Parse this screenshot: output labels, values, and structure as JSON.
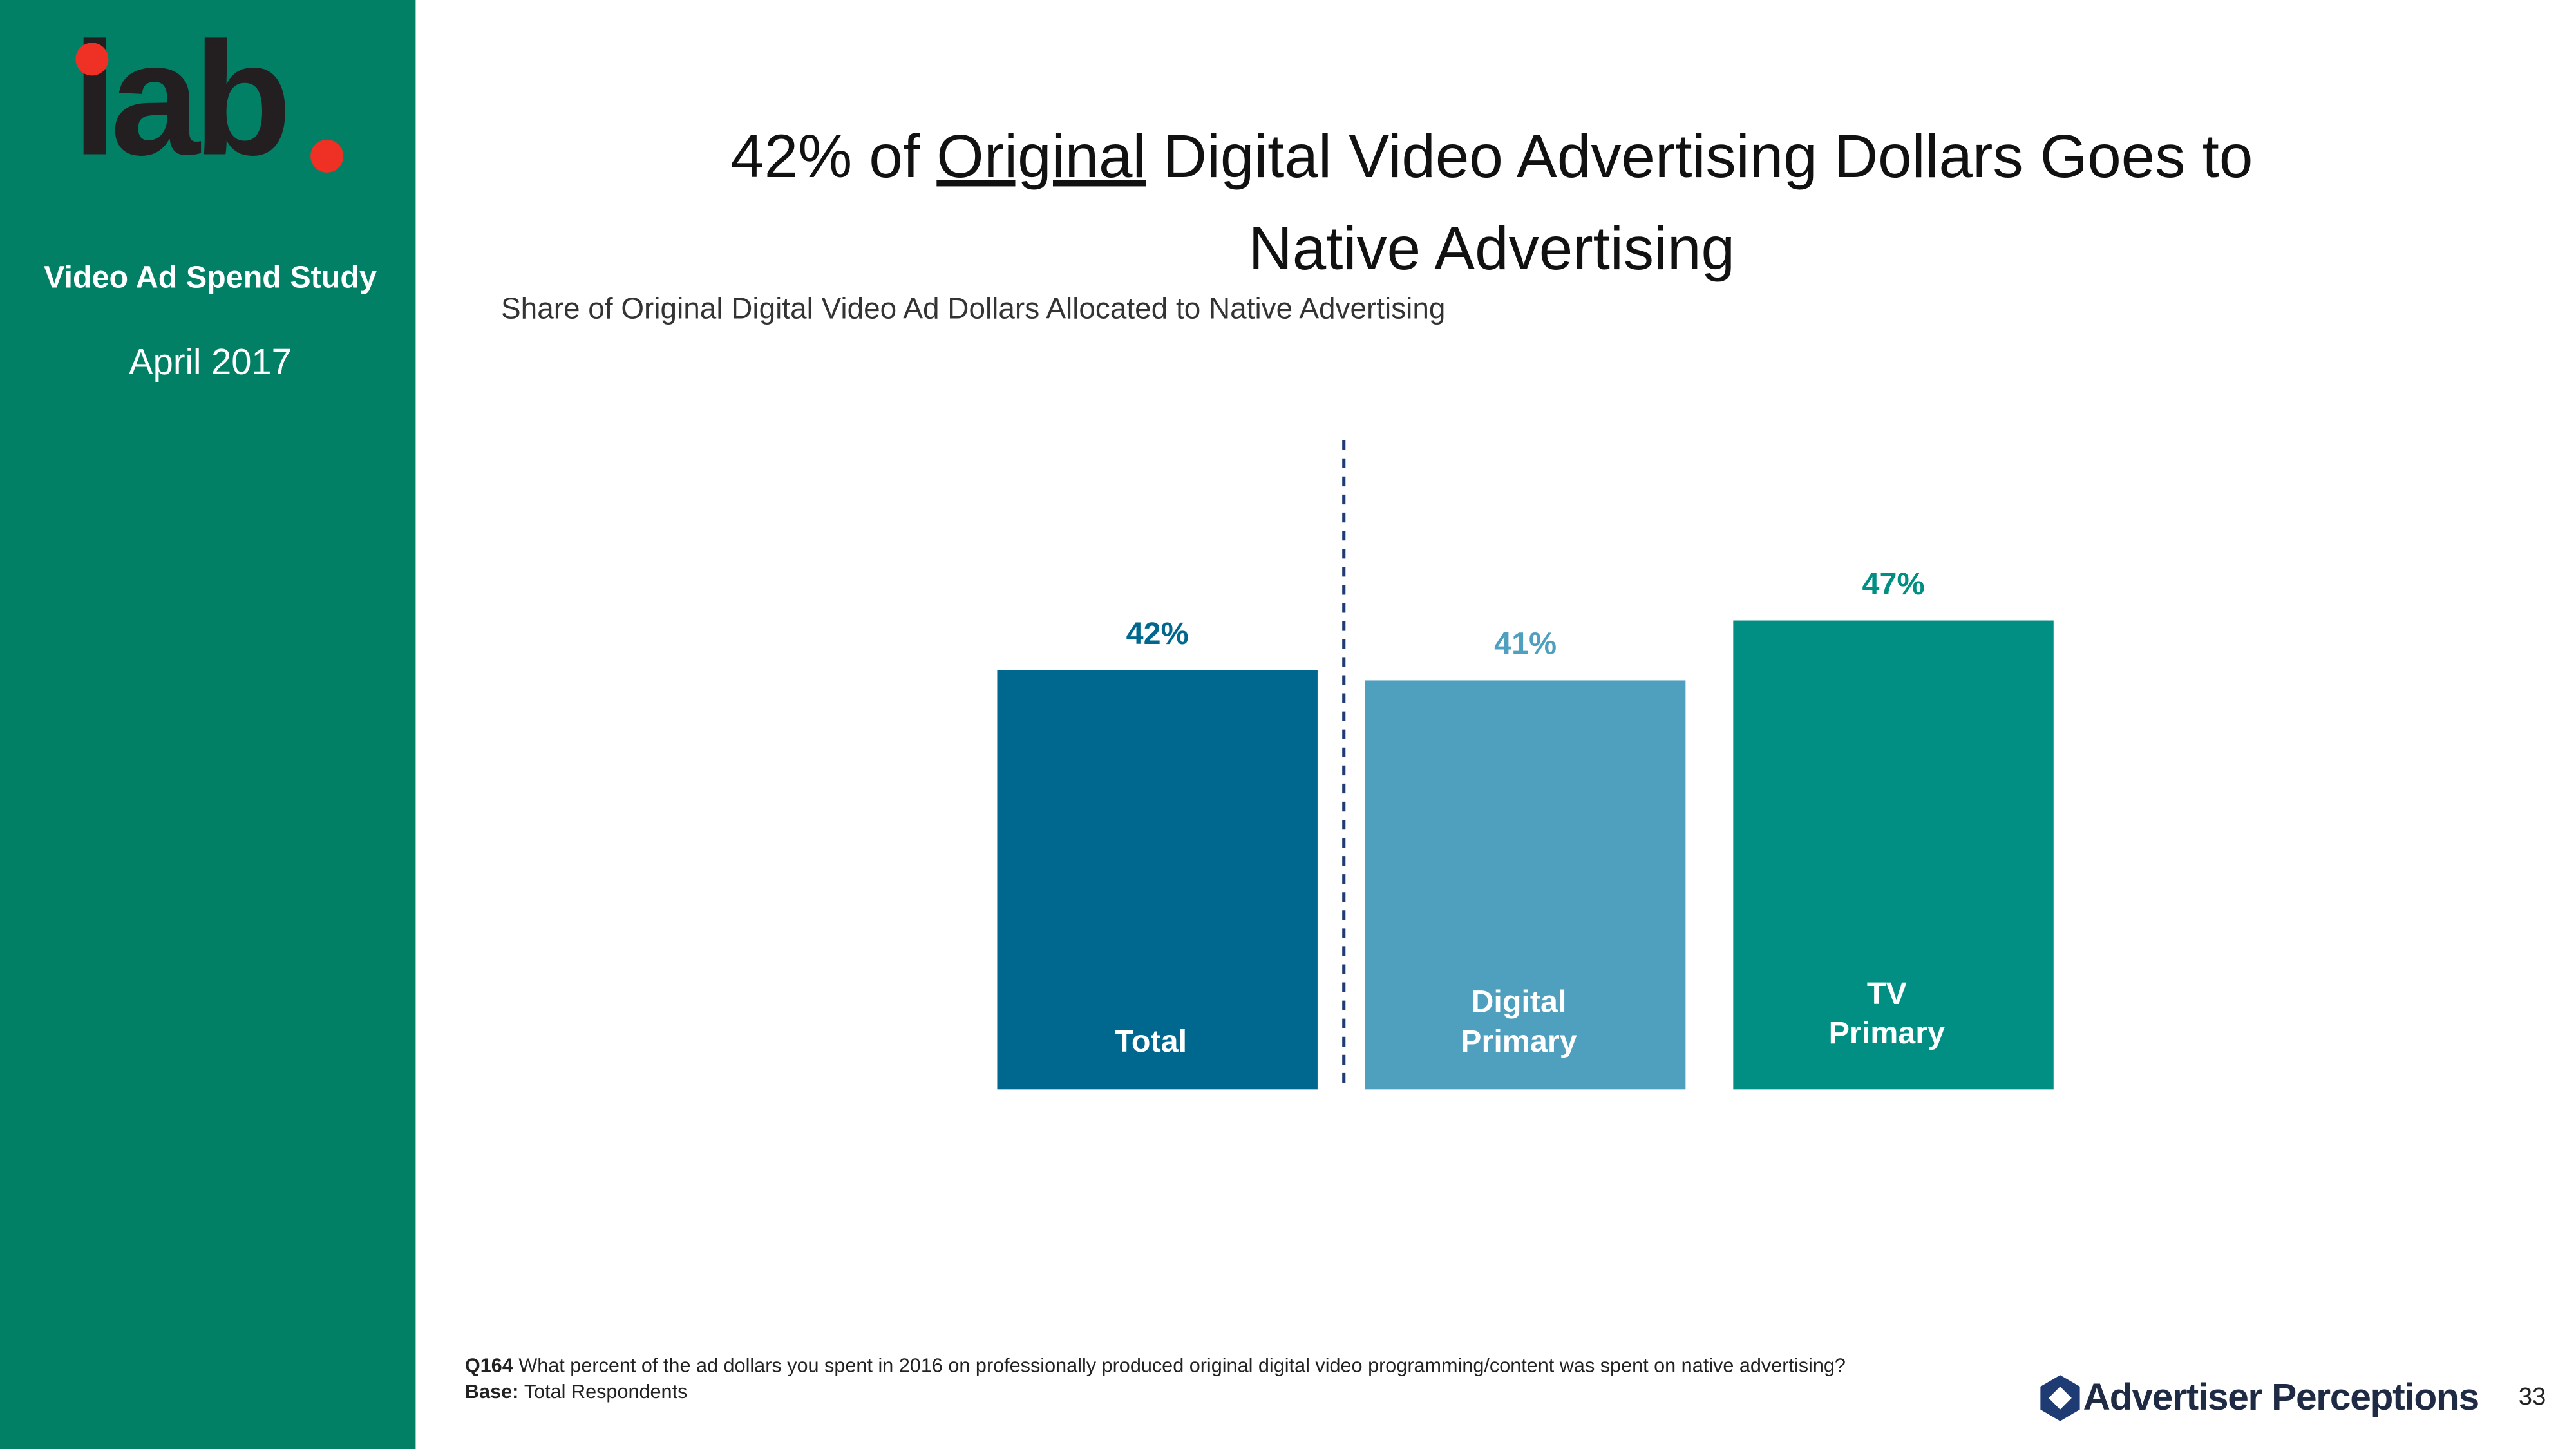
{
  "sidebar": {
    "logo": "iab",
    "study": "Video Ad Spend Study",
    "date": "April 2017"
  },
  "chart_data": {
    "type": "bar",
    "title": {
      "before": "42% of ",
      "underlined": "Original",
      "after": " Digital Video Advertising Dollars Goes to",
      "line2": "Native Advertising"
    },
    "subtitle": "Share of Original Digital Video Ad Dollars Allocated to Native Advertising",
    "categories": [
      "Total",
      "Digital Primary",
      "TV Primary"
    ],
    "values": [
      42,
      41,
      47
    ],
    "value_labels": [
      "42%",
      "41%",
      "47%"
    ],
    "colors": [
      "#00688f",
      "#4f9fbf",
      "#008f82"
    ]
  },
  "footer": {
    "question_id": "Q164",
    "question": "What percent of the ad dollars you spent in 2016 on professionally produced original digital video programming/content was spent on native advertising?",
    "base_label": "Base:",
    "base": "Total Respondents",
    "brand": "Advertiser Perceptions",
    "page": "33"
  }
}
